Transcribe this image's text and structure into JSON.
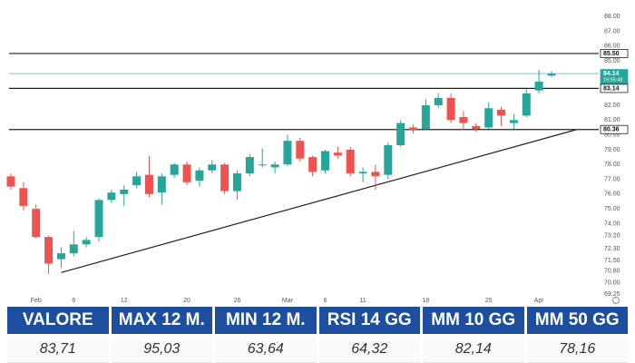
{
  "chart_data": {
    "type": "candlestick",
    "categories": [
      null,
      null,
      "Feb",
      null,
      null,
      "6",
      null,
      null,
      null,
      "12",
      null,
      null,
      null,
      null,
      "20",
      null,
      null,
      null,
      "26",
      null,
      null,
      null,
      "Mar",
      null,
      null,
      "6",
      null,
      null,
      "11",
      null,
      null,
      null,
      null,
      "18",
      null,
      null,
      null,
      null,
      "25",
      null,
      null,
      null,
      "Apr",
      null
    ],
    "open": [
      77.2,
      76.4,
      75.0,
      73.1,
      71.6,
      72.0,
      72.6,
      73.1,
      75.6,
      76.0,
      76.6,
      77.3,
      76.1,
      77.3,
      78.0,
      76.9,
      77.6,
      78.0,
      76.2,
      77.4,
      78.0,
      77.8,
      78.0,
      79.6,
      78.5,
      77.6,
      78.8,
      79.0,
      77.4,
      77.5,
      77.3,
      79.3,
      80.5,
      80.4,
      82.0,
      82.5,
      81.2,
      80.6,
      80.5,
      81.7,
      80.8,
      81.3,
      83.0,
      84.0
    ],
    "high": [
      77.4,
      76.8,
      75.3,
      73.2,
      72.4,
      73.5,
      73.1,
      75.7,
      76.3,
      76.6,
      77.5,
      78.6,
      77.4,
      78.1,
      78.2,
      77.8,
      78.3,
      78.1,
      77.6,
      78.7,
      79.1,
      78.2,
      80.0,
      79.8,
      78.6,
      79.0,
      79.2,
      79.2,
      77.8,
      78.0,
      79.5,
      81.0,
      80.7,
      82.4,
      82.8,
      82.8,
      81.6,
      80.8,
      82.2,
      81.9,
      81.4,
      83.1,
      84.4,
      84.3
    ],
    "low": [
      76.3,
      74.9,
      73.0,
      70.6,
      71.0,
      71.8,
      72.4,
      72.8,
      75.4,
      75.2,
      76.4,
      75.8,
      75.3,
      77.1,
      76.6,
      76.5,
      77.4,
      76.0,
      75.6,
      77.2,
      77.8,
      77.4,
      77.9,
      78.2,
      77.2,
      77.4,
      78.4,
      77.2,
      76.8,
      76.3,
      77.0,
      79.2,
      80.1,
      80.3,
      81.8,
      80.8,
      80.3,
      80.2,
      80.4,
      80.6,
      80.4,
      81.2,
      82.8,
      83.9
    ],
    "close": [
      76.5,
      75.2,
      73.1,
      71.3,
      72.0,
      72.6,
      72.9,
      75.6,
      76.1,
      76.3,
      77.2,
      76.0,
      77.2,
      78.0,
      76.8,
      77.6,
      78.0,
      76.2,
      77.4,
      78.5,
      78.0,
      78.0,
      79.6,
      78.4,
      77.5,
      78.9,
      78.6,
      77.4,
      77.5,
      77.2,
      79.3,
      80.8,
      80.3,
      82.0,
      82.5,
      81.0,
      80.8,
      80.4,
      81.8,
      81.3,
      81.0,
      82.8,
      83.6,
      84.14
    ],
    "up_color": "#26a69a",
    "down_color": "#ef5350",
    "ylim": [
      69,
      88.5
    ],
    "yticks": [
      {
        "value": 69.25,
        "label": "69.25"
      },
      {
        "value": 70,
        "label": "70.00"
      },
      {
        "value": 70.8,
        "label": "70.80"
      },
      {
        "value": 71.5,
        "label": "71.50"
      },
      {
        "value": 72.3,
        "label": "72.30"
      },
      {
        "value": 73.2,
        "label": "73.20"
      },
      {
        "value": 74,
        "label": "74.00"
      },
      {
        "value": 75,
        "label": "75.00"
      },
      {
        "value": 76,
        "label": "76.00"
      },
      {
        "value": 77,
        "label": "77.00"
      },
      {
        "value": 78,
        "label": "78.00"
      },
      {
        "value": 79,
        "label": "79.00"
      },
      {
        "value": 80,
        "label": "80.00"
      },
      {
        "value": 81,
        "label": "81.00"
      },
      {
        "value": 82,
        "label": "82.00"
      },
      {
        "value": 85,
        "label": "85.00"
      },
      {
        "value": 86,
        "label": "86.00"
      },
      {
        "value": 87,
        "label": "87.00"
      },
      {
        "value": 88,
        "label": "88.00"
      }
    ],
    "levels": [
      {
        "value": 85.5,
        "label": "85.50",
        "color": "#222222"
      },
      {
        "value": 84.14,
        "label": "84.14",
        "color": "#26a69a",
        "sublabel": "19:55:48"
      },
      {
        "value": 83.14,
        "label": "83.14",
        "color": "#222222"
      },
      {
        "value": 80.36,
        "label": "80.36",
        "color": "#222222"
      }
    ],
    "trendline": {
      "x": [
        4,
        45
      ],
      "y": [
        70.7,
        80.36
      ],
      "color": "#222222"
    }
  },
  "table": {
    "headers": [
      "VALORE",
      "MAX 12 M.",
      "MIN 12 M.",
      "RSI 14 GG",
      "MM 10 GG",
      "MM 50 GG"
    ],
    "rows": [
      [
        "83,71",
        "95,03",
        "63,64",
        "64,32",
        "82,14",
        "78,16"
      ]
    ]
  }
}
